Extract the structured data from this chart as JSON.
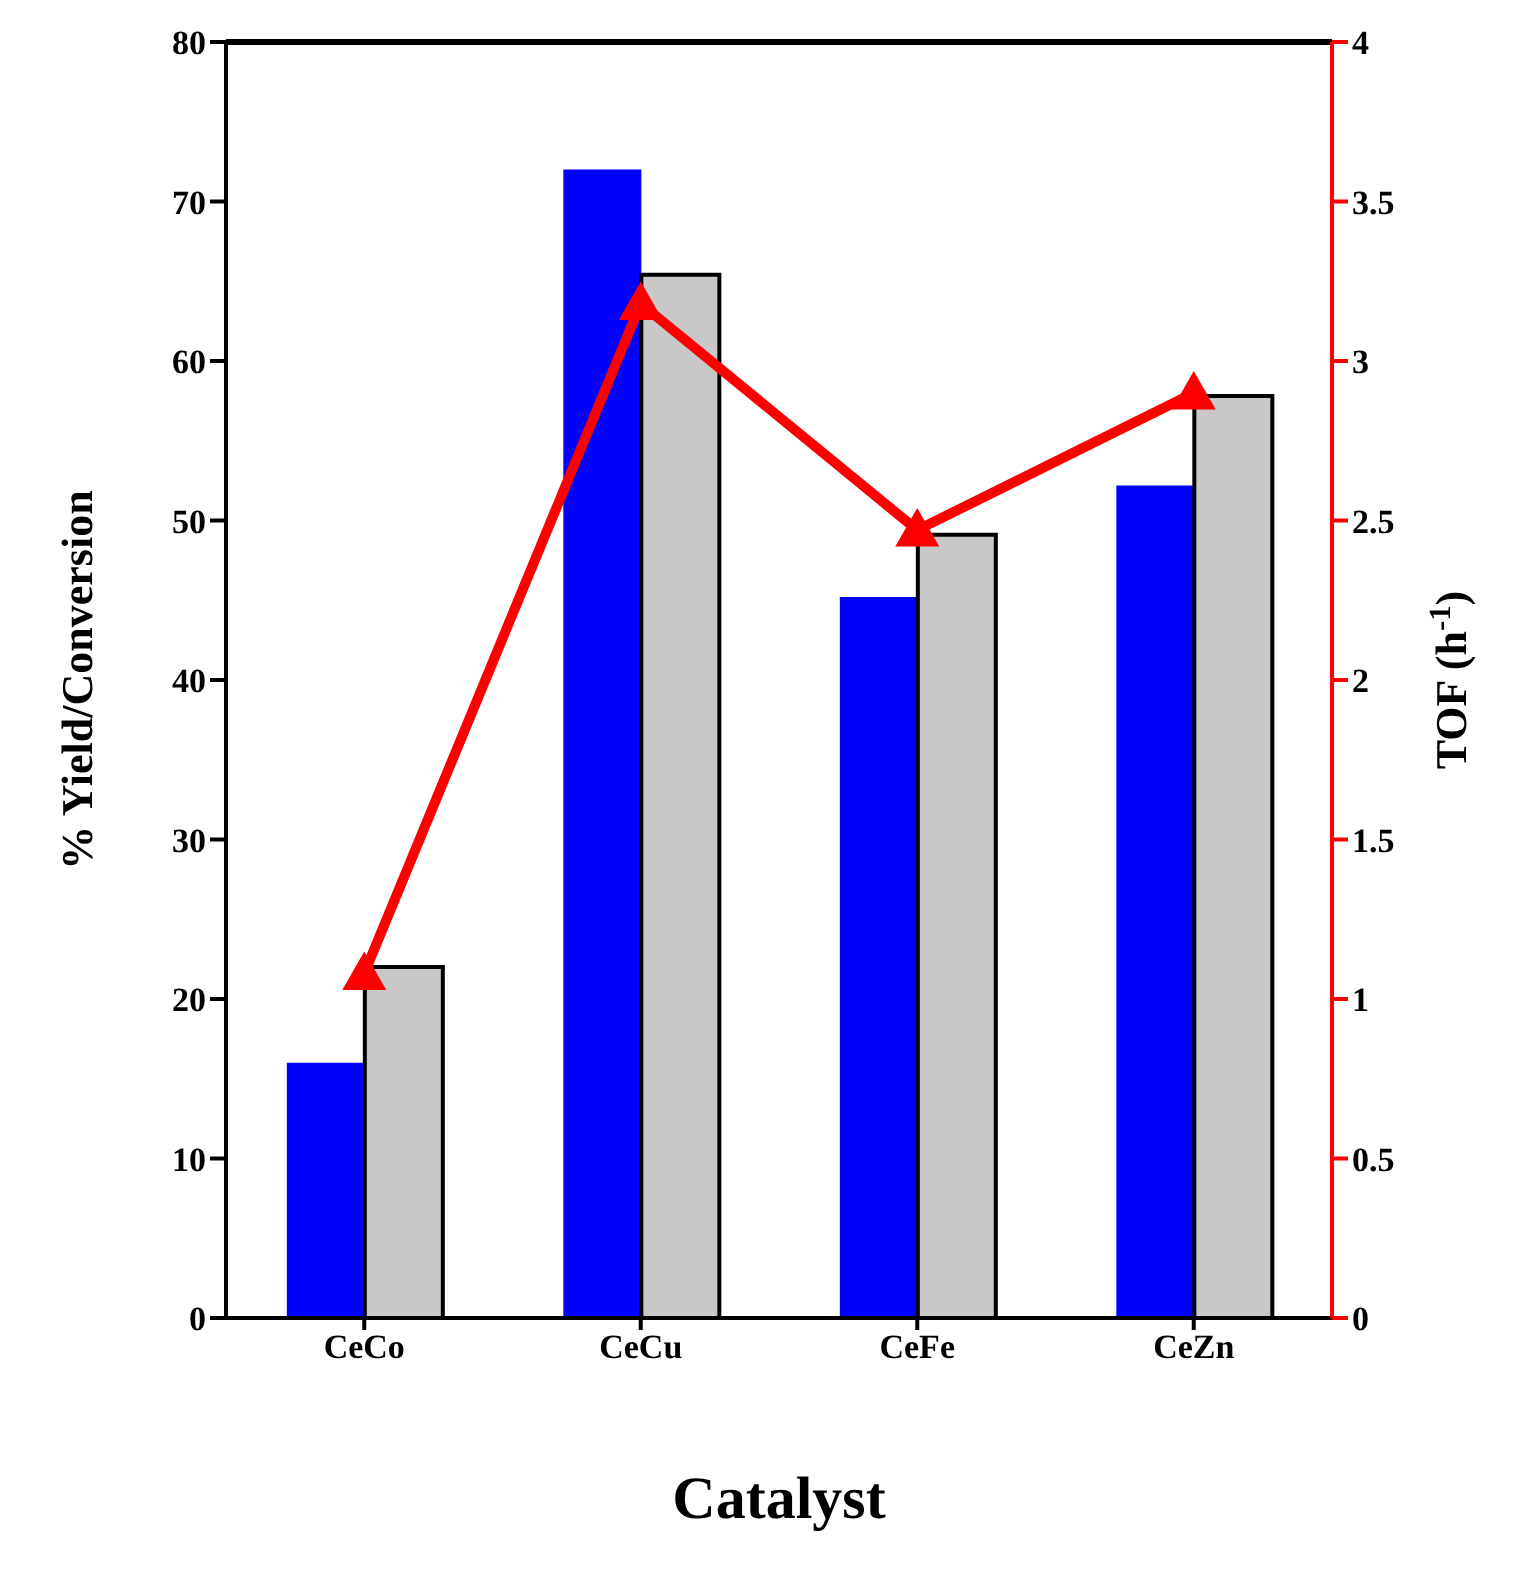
{
  "chart_data": {
    "type": "bar",
    "xlabel": "Catalyst",
    "ylabel": "% Yield/Conversion",
    "y2label": "TOF (h$^{-1}$)",
    "categories": [
      "CeCo",
      "CeCu",
      "CeFe",
      "CeZn"
    ],
    "series": [
      {
        "color": "#0000ff",
        "values": [
          16,
          72,
          45.2,
          52.2
        ]
      },
      {
        "color": "#c8c8c8",
        "values": [
          22,
          65.4,
          49.1,
          57.8
        ]
      },
      {
        "type": "line",
        "axis": "y2",
        "color": "#ff0000",
        "values": [
          1.08,
          3.18,
          2.47,
          2.9
        ]
      }
    ],
    "ylim": [
      0,
      80
    ],
    "yticks": [
      0,
      10,
      20,
      30,
      40,
      50,
      60,
      70,
      80
    ],
    "y2lim": [
      0,
      4
    ],
    "y2ticks": [
      0,
      0.5,
      1,
      1.5,
      2,
      2.5,
      3,
      3.5,
      4
    ],
    "marker": "triangle",
    "grid": false,
    "legend": false
  }
}
